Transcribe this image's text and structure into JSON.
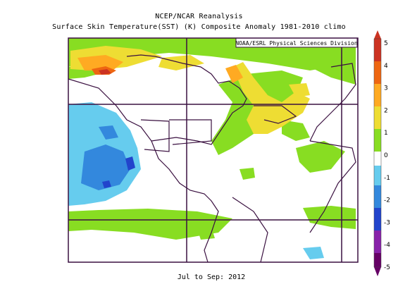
{
  "title_line1": "NCEP/NCAR Reanalysis",
  "title_line2": "Surface Skin Temperature(SST) (K) Composite Anomaly 1981-2010 climo",
  "credit": "NOAA/ESRL Physical Sciences Division",
  "period": "Jul to Sep: 2012",
  "colorbar": {
    "ticks": [
      "5",
      "4",
      "3",
      "2",
      "1",
      "0",
      "-1",
      "-2",
      "-3",
      "-4",
      "-5"
    ],
    "colors": {
      "c5": "#cc3322",
      "c4": "#ee6611",
      "c3": "#ffaa22",
      "c2": "#eedd33",
      "c1": "#88dd22",
      "c0": "#ffffff",
      "cm1": "#66ccee",
      "cm2": "#3388dd",
      "cm3": "#2244cc",
      "cm4": "#8822aa",
      "cm5": "#660066"
    }
  },
  "map_colors": {
    "ocean_positive_1": "#88dd22",
    "ocean_positive_2": "#eedd33",
    "ocean_positive_3": "#ffaa22",
    "ocean_negative_1": "#66ccee",
    "ocean_negative_2": "#3388dd",
    "coastline": "#3a1040"
  }
}
